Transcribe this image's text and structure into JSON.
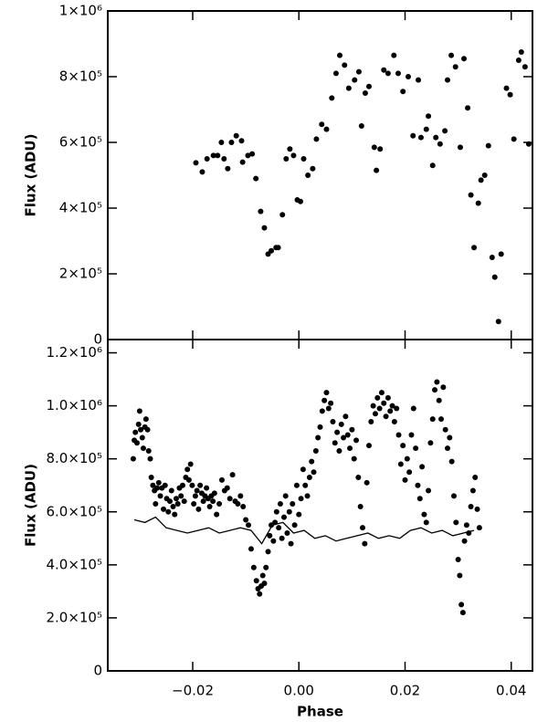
{
  "chart_data": [
    {
      "type": "scatter",
      "ylabel": "Flux (ADU)",
      "xlim": [
        -0.036,
        0.044
      ],
      "ylim": [
        0,
        1000000
      ],
      "xticks": [
        -0.02,
        0,
        0.02,
        0.04
      ],
      "yticks": [
        0,
        {
          "value": 200000,
          "label": "2×10⁵"
        },
        {
          "value": 400000,
          "label": "4×10⁵"
        },
        {
          "value": 600000,
          "label": "6×10⁵"
        },
        {
          "value": 800000,
          "label": "8×10⁵"
        },
        {
          "value": 1000000,
          "label": "1×10⁶"
        }
      ],
      "series": [
        {
          "type": "scatter",
          "color": "#000000",
          "x": [
            -0.0194,
            -0.0182,
            -0.0173,
            -0.0161,
            -0.0153,
            -0.0146,
            -0.0141,
            -0.0134,
            -0.0127,
            -0.0118,
            -0.0108,
            -0.0106,
            -0.0096,
            -0.0088,
            -0.0081,
            -0.0072,
            -0.0065,
            -0.0058,
            -0.0052,
            -0.0043,
            -0.0039,
            -0.0031,
            -0.0024,
            -0.0017,
            -0.001,
            -0.0003,
            0.0003,
            0.0009,
            0.0017,
            0.0026,
            0.0033,
            0.0043,
            0.0052,
            0.0062,
            0.007,
            0.0077,
            0.0086,
            0.0094,
            0.0105,
            0.0113,
            0.0118,
            0.0125,
            0.0132,
            0.0142,
            0.0146,
            0.0153,
            0.016,
            0.0168,
            0.0179,
            0.0187,
            0.0196,
            0.0206,
            0.0215,
            0.0225,
            0.023,
            0.024,
            0.0244,
            0.0252,
            0.0258,
            0.0266,
            0.0275,
            0.028,
            0.0287,
            0.0295,
            0.0304,
            0.0311,
            0.0318,
            0.0324,
            0.033,
            0.0338,
            0.0343,
            0.035,
            0.0357,
            0.0364,
            0.0369,
            0.0376,
            0.0381,
            0.0391,
            0.0398,
            0.0405,
            0.0414,
            0.0419,
            0.0426,
            0.0433
          ],
          "values": [
            538000,
            510000,
            550000,
            560000,
            560000,
            600000,
            550000,
            520000,
            600000,
            620000,
            605000,
            540000,
            560000,
            565000,
            490000,
            390000,
            340000,
            260000,
            270000,
            280000,
            280000,
            380000,
            550000,
            580000,
            560000,
            425000,
            420000,
            550000,
            500000,
            520000,
            610000,
            655000,
            640000,
            735000,
            810000,
            865000,
            835000,
            765000,
            790000,
            815000,
            650000,
            750000,
            770000,
            585000,
            515000,
            580000,
            820000,
            810000,
            865000,
            810000,
            755000,
            800000,
            620000,
            790000,
            615000,
            640000,
            680000,
            530000,
            615000,
            595000,
            635000,
            790000,
            865000,
            830000,
            585000,
            855000,
            705000,
            440000,
            280000,
            415000,
            485000,
            500000,
            590000,
            250000,
            190000,
            55000,
            260000,
            765000,
            745000,
            610000,
            850000,
            875000,
            830000,
            595000
          ]
        }
      ]
    },
    {
      "type": "scatter",
      "ylabel": "Flux (ADU)",
      "xlabel": "Phase",
      "xlim": [
        -0.036,
        0.044
      ],
      "ylim": [
        0,
        1250000
      ],
      "xticks": [
        {
          "value": -0.02,
          "label": "−0.02"
        },
        {
          "value": 0,
          "label": "0.00"
        },
        0.02,
        0.04
      ],
      "yticks": [
        0,
        {
          "value": 200000,
          "label": "2.0×10⁵"
        },
        {
          "value": 400000,
          "label": "4.0×10⁵"
        },
        {
          "value": 600000,
          "label": "6.0×10⁵"
        },
        {
          "value": 800000,
          "label": "8.0×10⁵"
        },
        {
          "value": 1000000,
          "label": "1.0×10⁶"
        },
        {
          "value": 1200000,
          "label": "1.2×10⁶"
        }
      ],
      "series": [
        {
          "type": "scatter",
          "color": "#000000",
          "x": [
            -0.0312,
            -0.031,
            -0.0308,
            -0.0305,
            -0.0302,
            -0.03,
            -0.0298,
            -0.0295,
            -0.0293,
            -0.029,
            -0.0288,
            -0.0285,
            -0.0283,
            -0.028,
            -0.0278,
            -0.0275,
            -0.0272,
            -0.027,
            -0.0267,
            -0.0264,
            -0.0261,
            -0.0258,
            -0.0255,
            -0.0252,
            -0.0249,
            -0.0246,
            -0.0243,
            -0.024,
            -0.0237,
            -0.0234,
            -0.0231,
            -0.0228,
            -0.0225,
            -0.0222,
            -0.0219,
            -0.0216,
            -0.0213,
            -0.021,
            -0.0207,
            -0.0204,
            -0.0201,
            -0.0198,
            -0.0195,
            -0.0192,
            -0.0189,
            -0.0186,
            -0.0183,
            -0.018,
            -0.0177,
            -0.0174,
            -0.0171,
            -0.0168,
            -0.0165,
            -0.0162,
            -0.0159,
            -0.0155,
            -0.015,
            -0.0145,
            -0.014,
            -0.0135,
            -0.013,
            -0.0125,
            -0.012,
            -0.0115,
            -0.011,
            -0.0105,
            -0.01,
            -0.0095,
            -0.009,
            -0.0085,
            -0.008,
            -0.0077,
            -0.0074,
            -0.0071,
            -0.0068,
            -0.0065,
            -0.0062,
            -0.0058,
            -0.0055,
            -0.0052,
            -0.0048,
            -0.0045,
            -0.0042,
            -0.0038,
            -0.0035,
            -0.0032,
            -0.0028,
            -0.0025,
            -0.0022,
            -0.0018,
            -0.0015,
            -0.0012,
            -0.0008,
            -0.0004,
            0,
            0.0004,
            0.0008,
            0.0012,
            0.0016,
            0.002,
            0.0024,
            0.0028,
            0.0032,
            0.0036,
            0.004,
            0.0044,
            0.0048,
            0.0052,
            0.0056,
            0.006,
            0.0064,
            0.0068,
            0.0072,
            0.0076,
            0.008,
            0.0084,
            0.0088,
            0.0092,
            0.0096,
            0.01,
            0.0104,
            0.0108,
            0.0112,
            0.0116,
            0.012,
            0.0124,
            0.0128,
            0.0132,
            0.0136,
            0.014,
            0.0144,
            0.0148,
            0.0152,
            0.0156,
            0.016,
            0.0164,
            0.0168,
            0.0172,
            0.0176,
            0.018,
            0.0184,
            0.0188,
            0.0192,
            0.0196,
            0.02,
            0.0204,
            0.0208,
            0.0212,
            0.0216,
            0.022,
            0.0224,
            0.0228,
            0.0232,
            0.0236,
            0.024,
            0.0244,
            0.0248,
            0.0252,
            0.0256,
            0.026,
            0.0264,
            0.0268,
            0.0272,
            0.0276,
            0.028,
            0.0284,
            0.0288,
            0.0292,
            0.0296,
            0.03,
            0.0303,
            0.0306,
            0.0309,
            0.0312,
            0.0316,
            0.032,
            0.0324,
            0.0328,
            0.0332,
            0.0336,
            0.034
          ],
          "values": [
            800000,
            870000,
            900000,
            860000,
            930000,
            980000,
            910000,
            880000,
            840000,
            920000,
            950000,
            910000,
            830000,
            800000,
            730000,
            700000,
            680000,
            630000,
            690000,
            710000,
            660000,
            690000,
            610000,
            700000,
            650000,
            600000,
            640000,
            680000,
            620000,
            590000,
            650000,
            630000,
            690000,
            660000,
            700000,
            640000,
            730000,
            760000,
            720000,
            780000,
            700000,
            630000,
            660000,
            680000,
            610000,
            700000,
            670000,
            640000,
            660000,
            690000,
            650000,
            620000,
            660000,
            640000,
            670000,
            590000,
            630000,
            720000,
            680000,
            690000,
            650000,
            740000,
            640000,
            630000,
            660000,
            620000,
            570000,
            550000,
            460000,
            390000,
            340000,
            310000,
            290000,
            320000,
            360000,
            330000,
            390000,
            450000,
            510000,
            550000,
            490000,
            560000,
            600000,
            540000,
            630000,
            500000,
            580000,
            660000,
            520000,
            600000,
            480000,
            630000,
            550000,
            700000,
            590000,
            650000,
            760000,
            700000,
            660000,
            730000,
            790000,
            750000,
            830000,
            880000,
            920000,
            980000,
            1020000,
            1050000,
            990000,
            1010000,
            940000,
            860000,
            900000,
            830000,
            930000,
            880000,
            960000,
            890000,
            840000,
            910000,
            800000,
            870000,
            730000,
            620000,
            540000,
            480000,
            710000,
            850000,
            940000,
            1000000,
            970000,
            1030000,
            990000,
            1050000,
            1010000,
            960000,
            1030000,
            980000,
            1000000,
            940000,
            990000,
            890000,
            780000,
            850000,
            720000,
            800000,
            750000,
            890000,
            990000,
            840000,
            700000,
            650000,
            770000,
            590000,
            560000,
            680000,
            860000,
            950000,
            1060000,
            1090000,
            1020000,
            950000,
            1070000,
            910000,
            840000,
            880000,
            790000,
            660000,
            560000,
            420000,
            360000,
            250000,
            220000,
            490000,
            550000,
            520000,
            620000,
            680000,
            730000,
            610000,
            540000
          ]
        },
        {
          "type": "line",
          "color": "#000000",
          "x": [
            -0.031,
            -0.029,
            -0.027,
            -0.025,
            -0.023,
            -0.021,
            -0.019,
            -0.017,
            -0.015,
            -0.013,
            -0.011,
            -0.009,
            -0.007,
            -0.005,
            -0.003,
            -0.001,
            0.001,
            0.003,
            0.005,
            0.007,
            0.009,
            0.011,
            0.013,
            0.015,
            0.017,
            0.019,
            0.021,
            0.023,
            0.025,
            0.027,
            0.029,
            0.031,
            0.033
          ],
          "values": [
            570000,
            560000,
            580000,
            540000,
            530000,
            520000,
            530000,
            540000,
            520000,
            530000,
            540000,
            530000,
            480000,
            550000,
            560000,
            520000,
            530000,
            500000,
            510000,
            490000,
            500000,
            510000,
            520000,
            500000,
            510000,
            500000,
            530000,
            540000,
            520000,
            530000,
            510000,
            520000,
            530000
          ]
        }
      ]
    }
  ]
}
